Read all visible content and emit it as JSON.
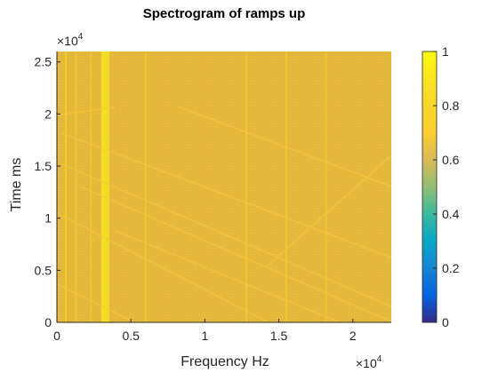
{
  "chart_data": {
    "type": "heatmap",
    "title": "Spectrogram of ramps up",
    "xlabel": "Frequency Hz",
    "ylabel": "Time ms",
    "xlim": [
      0,
      22600
    ],
    "ylim": [
      0,
      26000
    ],
    "x_ticks": [
      0,
      0.5,
      1,
      1.5,
      2
    ],
    "x_tick_labels": [
      "0",
      "0.5",
      "1",
      "1.5",
      "2"
    ],
    "x_exponent": {
      "base": "×10",
      "power": "4"
    },
    "y_ticks": [
      0,
      0.5,
      1,
      1.5,
      2,
      2.5
    ],
    "y_tick_labels": [
      "0",
      "0.5",
      "1",
      "1.5",
      "2",
      "2.5"
    ],
    "y_exponent": {
      "base": "×10",
      "power": "4"
    },
    "colorbar": {
      "range": [
        0,
        1
      ],
      "ticks": [
        0,
        0.2,
        0.4,
        0.6,
        0.8,
        1
      ],
      "tick_labels": [
        "0",
        "0.2",
        "0.4",
        "0.6",
        "0.8",
        "1"
      ],
      "colormap": "parula"
    },
    "dominant_value": 0.85,
    "bright_bands_hz": [
      {
        "x": 600,
        "value": 0.92
      },
      {
        "x": 1300,
        "value": 0.9
      },
      {
        "x": 2300,
        "value": 0.9
      },
      {
        "x": 3150,
        "value": 0.97
      },
      {
        "x": 3400,
        "value": 0.96
      },
      {
        "x": 6000,
        "value": 0.9
      },
      {
        "x": 12800,
        "value": 0.9
      },
      {
        "x": 15500,
        "value": 0.9
      },
      {
        "x": 18200,
        "value": 0.89
      }
    ],
    "grid": false
  }
}
